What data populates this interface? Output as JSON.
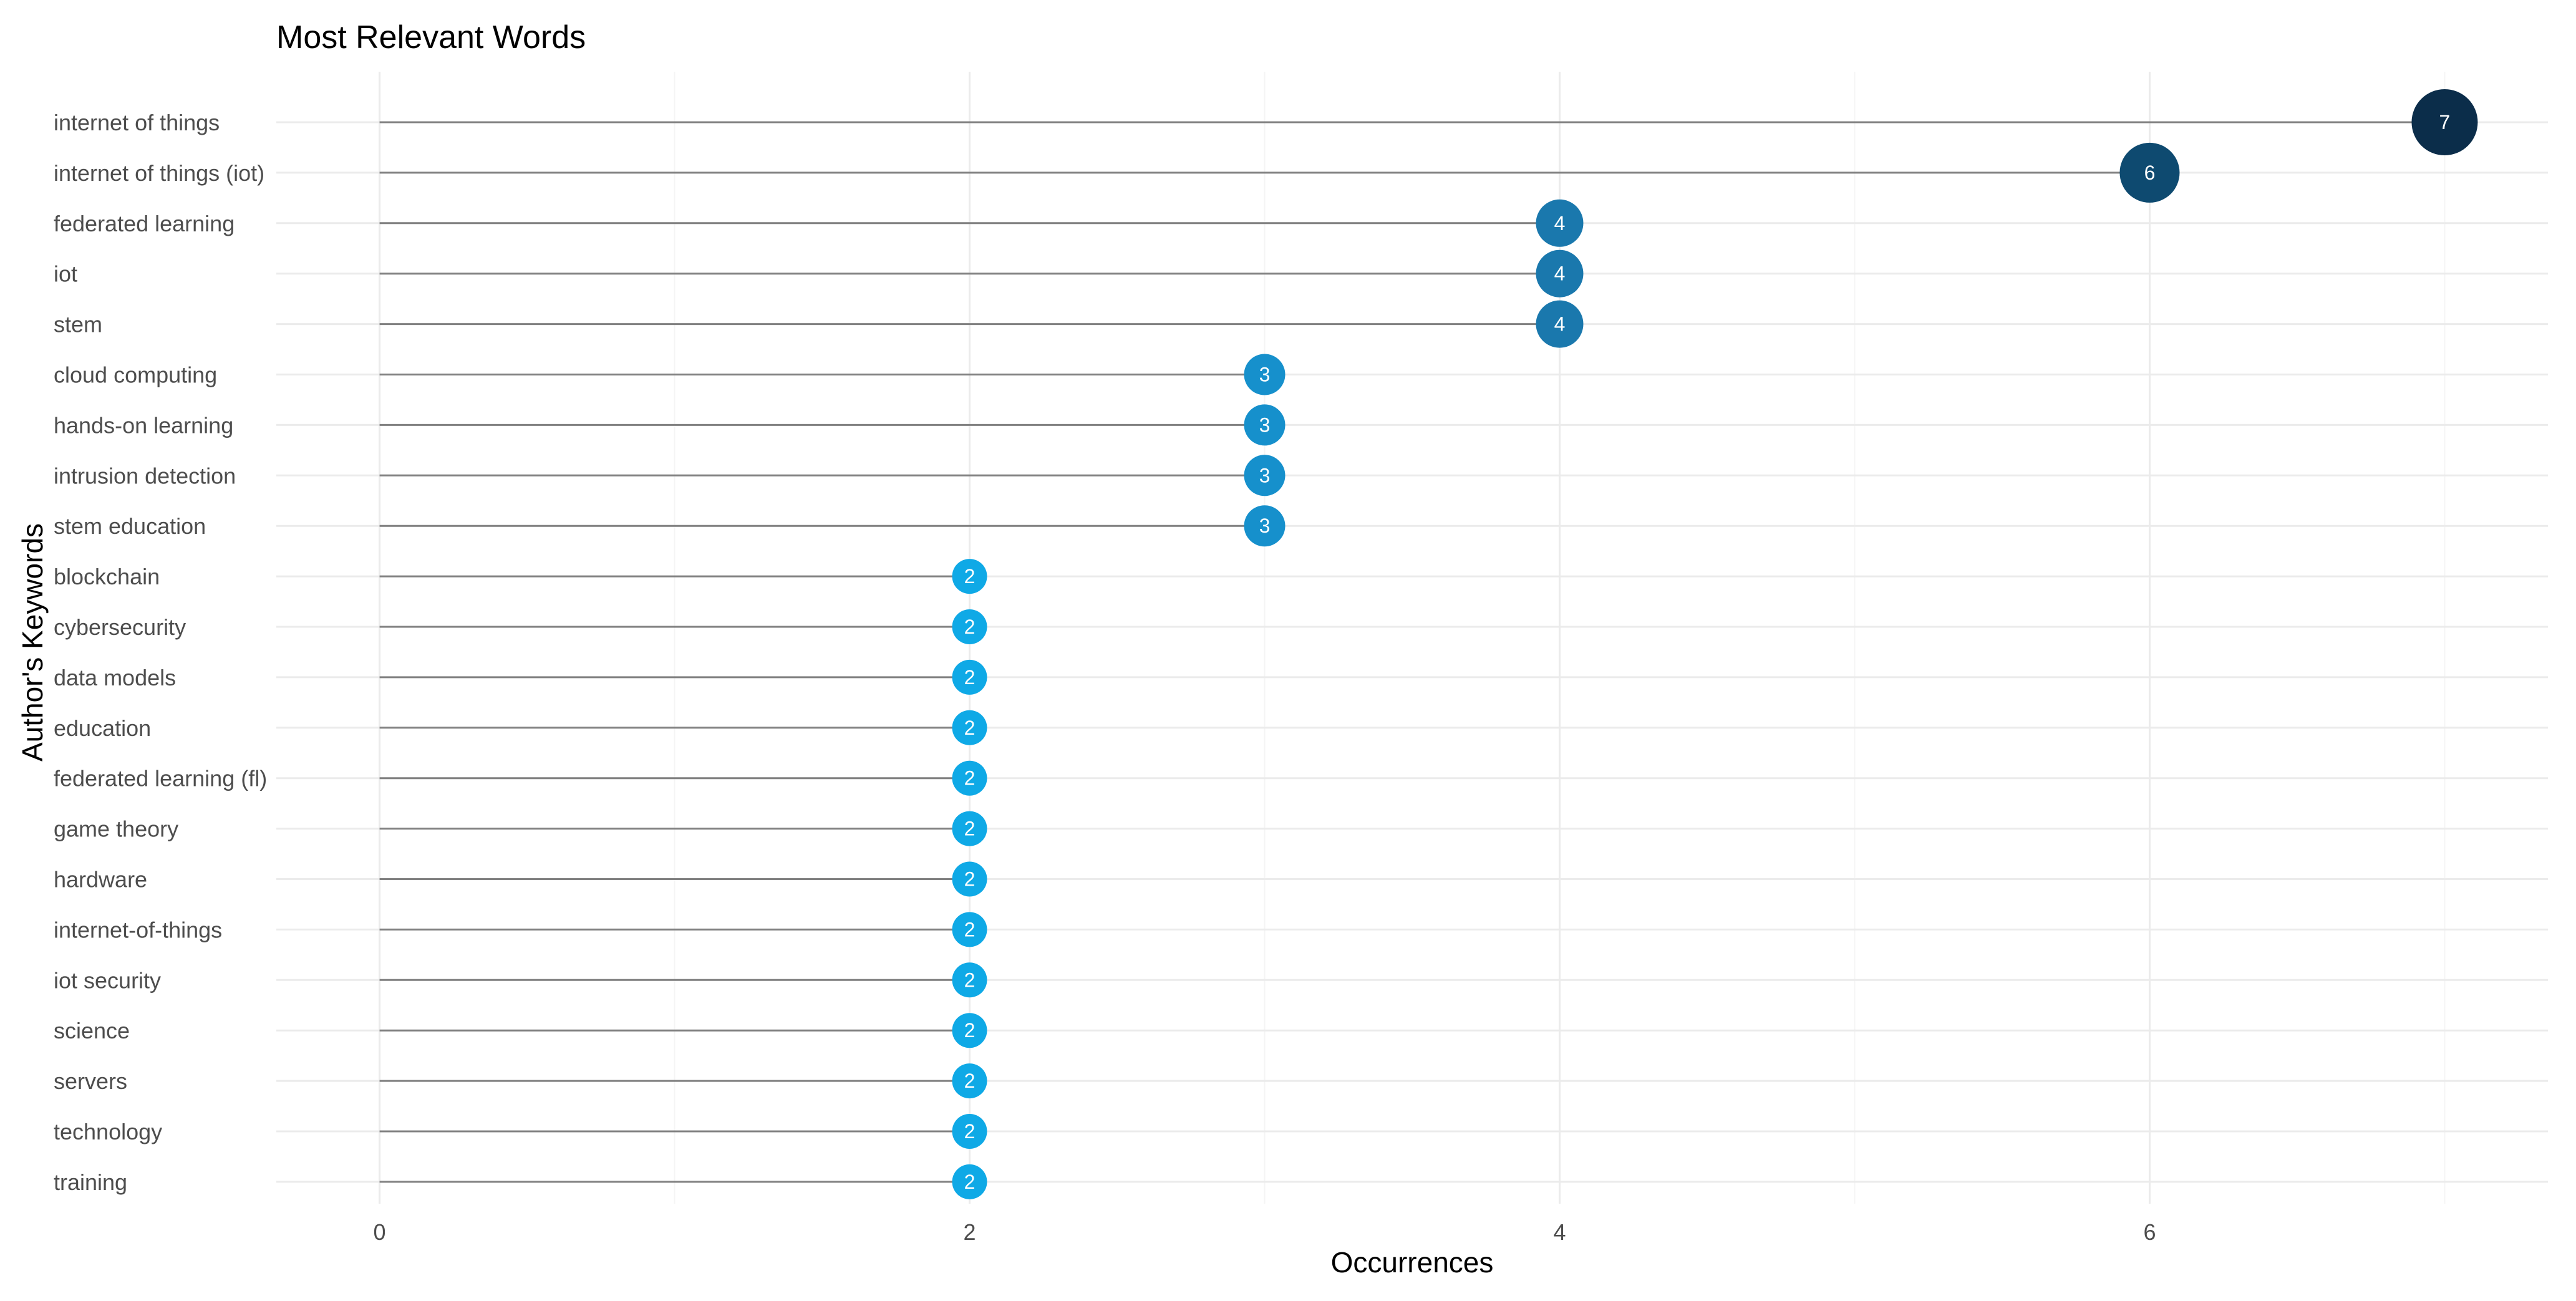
{
  "chart_data": {
    "type": "lollipop",
    "title": "Most Relevant Words",
    "xlabel": "Occurrences",
    "ylabel": "Author's Keywords",
    "xlim": [
      -0.35,
      7.35
    ],
    "x_ticks": [
      0,
      2,
      4,
      6
    ],
    "x_tick_labels": [
      "0",
      "2",
      "4",
      "6"
    ],
    "grid": true,
    "legend": "none",
    "categories": [
      "internet of things",
      "internet of things (iot)",
      "federated learning",
      "iot",
      "stem",
      "cloud computing",
      "hands-on learning",
      "intrusion detection",
      "stem education",
      "blockchain",
      "cybersecurity",
      "data models",
      "education",
      "federated learning (fl)",
      "game theory",
      "hardware",
      "internet-of-things",
      "iot security",
      "science",
      "servers",
      "technology",
      "training"
    ],
    "values": [
      7,
      6,
      4,
      4,
      4,
      3,
      3,
      3,
      3,
      2,
      2,
      2,
      2,
      2,
      2,
      2,
      2,
      2,
      2,
      2,
      2,
      2
    ],
    "data_labels": [
      "7",
      "6",
      "4",
      "4",
      "4",
      "3",
      "3",
      "3",
      "3",
      "2",
      "2",
      "2",
      "2",
      "2",
      "2",
      "2",
      "2",
      "2",
      "2",
      "2",
      "2",
      "2"
    ],
    "colors": {
      "7": "#0b2d4a",
      "6": "#0e4a70",
      "4": "#1a78ad",
      "3": "#1690cc",
      "2": "#0fa9e6",
      "stem": "#808080",
      "grid_major": "#ebebeb",
      "grid_minor": "#f5f5f5",
      "text": "#4d4d4d"
    }
  }
}
